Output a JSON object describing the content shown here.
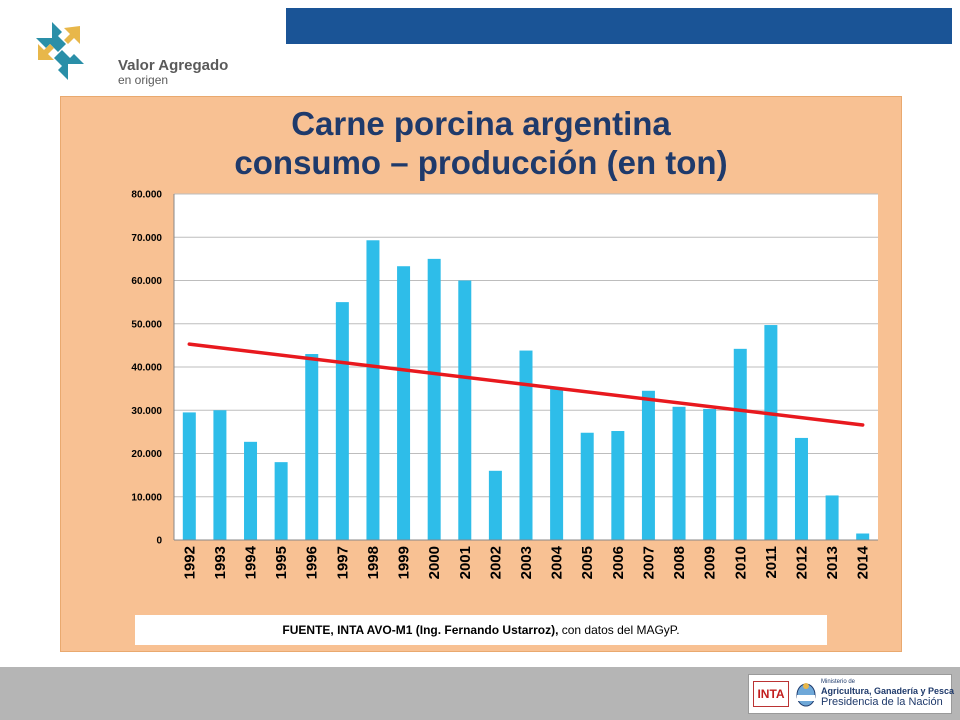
{
  "header": {
    "logo_line1": "Valor Agregado",
    "logo_line2": "en origen"
  },
  "slide": {
    "title_line1": "Carne porcina argentina",
    "title_line2": "consumo – producción (en ton)",
    "source_bold": "FUENTE,  INTA AVO-M1 (Ing. Fernando Ustarroz),",
    "source_rest": " con datos del MAGyP."
  },
  "footer": {
    "inta_label": "INTA",
    "ministry_line1": "Ministerio de",
    "ministry_line2": "Agricultura, Ganadería y Pesca",
    "ministry_line3": "Presidencia de la Nación"
  },
  "colors": {
    "bar": "#2ebde9",
    "trend": "#e8191e",
    "panel": "#f8c193",
    "title": "#1f3a6b",
    "top_bar": "#1a5496"
  },
  "chart_data": {
    "type": "bar",
    "categories": [
      "1992",
      "1993",
      "1994",
      "1995",
      "1996",
      "1997",
      "1998",
      "1999",
      "2000",
      "2001",
      "2002",
      "2003",
      "2004",
      "2005",
      "2006",
      "2007",
      "2008",
      "2009",
      "2010",
      "2011",
      "2012",
      "2013",
      "2014"
    ],
    "values": [
      29500,
      30000,
      22700,
      18000,
      43000,
      55000,
      69300,
      63300,
      65000,
      60000,
      16000,
      43800,
      35000,
      24800,
      25200,
      34500,
      30800,
      30300,
      44200,
      49700,
      23600,
      10300,
      1500
    ],
    "trendline": {
      "start": 45300,
      "end": 26600
    },
    "ylim": [
      0,
      80000
    ],
    "yticks": [
      "0",
      "10.000",
      "20.000",
      "30.000",
      "40.000",
      "50.000",
      "60.000",
      "70.000",
      "80.000"
    ],
    "grid": true,
    "legend": "none"
  }
}
